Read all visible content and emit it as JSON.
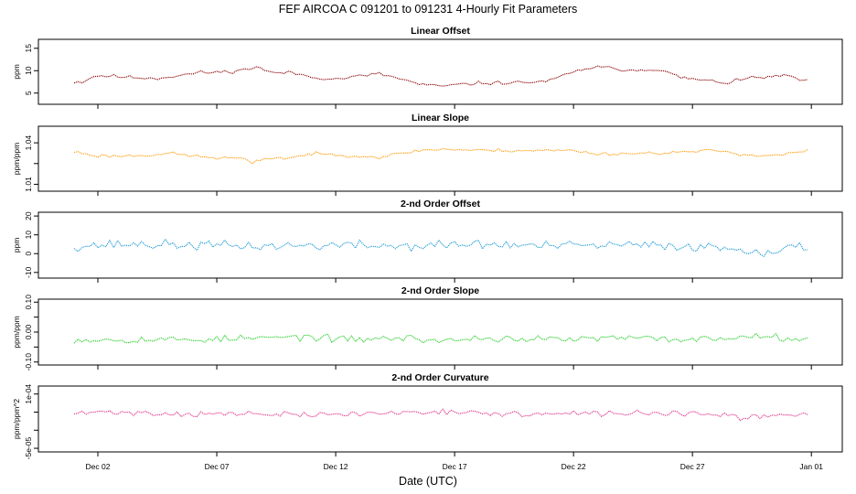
{
  "figure": {
    "title": "FEF   AIRCOA C   091201 to 091231   4-Hourly Fit Parameters",
    "xlabel": "Date (UTC)",
    "x_ticks": [
      {
        "day": 2,
        "label": "Dec 02"
      },
      {
        "day": 7,
        "label": "Dec 07"
      },
      {
        "day": 12,
        "label": "Dec 12"
      },
      {
        "day": 17,
        "label": "Dec 17"
      },
      {
        "day": 22,
        "label": "Dec 22"
      },
      {
        "day": 27,
        "label": "Dec 27"
      },
      {
        "day": 32,
        "label": "Jan 01"
      }
    ],
    "xlim": [
      -0.5,
      33.3
    ]
  },
  "chart_data": [
    {
      "type": "line",
      "title": "Linear Offset",
      "ylabel": "ppm",
      "ylim": [
        2.5,
        17
      ],
      "yticks": [
        5,
        10,
        15
      ],
      "ytick_labels": [
        "5",
        "10",
        "15"
      ],
      "color": "#8b0000",
      "x_start": 1.0,
      "x_step": 0.1667,
      "knots": {
        "x": [
          1.0,
          1.4,
          1.7,
          2.0,
          2.5,
          3.5,
          4.5,
          5.5,
          6.3,
          6.8,
          7.5,
          8.3,
          8.7,
          9.2,
          10.2,
          11.0,
          12.0,
          13.0,
          13.8,
          14.5,
          15.5,
          16.3,
          17.0,
          18.0,
          19.0,
          20.0,
          21.0,
          21.5,
          22.0,
          22.5,
          23.0,
          24.5,
          25.5,
          26.5,
          27.5,
          28.5,
          29.5,
          30.5,
          31.0,
          31.5,
          32.0
        ],
        "y": [
          7.5,
          7.5,
          8.5,
          8.9,
          8.8,
          8.5,
          8.3,
          9.0,
          9.6,
          9.6,
          9.8,
          10.3,
          11.0,
          9.6,
          9.5,
          8.6,
          8.1,
          8.8,
          9.3,
          8.5,
          7.0,
          6.5,
          6.8,
          7.2,
          7.3,
          7.4,
          7.7,
          8.8,
          9.6,
          10.5,
          10.8,
          10.1,
          10.4,
          8.5,
          7.8,
          7.3,
          8.5,
          8.6,
          9.0,
          8.0,
          7.5
        ]
      },
      "noise": 0.2,
      "seed": 11
    },
    {
      "type": "line",
      "title": "Linear Slope",
      "ylabel": "ppm/ppm",
      "ylim": [
        1.005,
        1.052
      ],
      "yticks": [
        1.01,
        1.025,
        1.04
      ],
      "ytick_labels": [
        "1.01",
        "",
        "1.04"
      ],
      "color": "#ff9900",
      "x_start": 1.0,
      "x_step": 0.1667,
      "knots": {
        "x": [
          1.0,
          2.0,
          3.0,
          4.0,
          5.0,
          6.0,
          7.0,
          8.0,
          8.5,
          9.0,
          10.0,
          11.0,
          12.0,
          13.0,
          13.8,
          14.5,
          15.5,
          16.5,
          18.0,
          20.0,
          22.0,
          23.0,
          25.0,
          27.0,
          28.0,
          29.0,
          30.0,
          31.0,
          32.0
        ],
        "y": [
          1.0335,
          1.0305,
          1.0305,
          1.031,
          1.0325,
          1.0305,
          1.029,
          1.029,
          1.025,
          1.029,
          1.029,
          1.032,
          1.0315,
          1.0305,
          1.0295,
          1.0315,
          1.0345,
          1.0355,
          1.0345,
          1.0345,
          1.0345,
          1.032,
          1.0325,
          1.0335,
          1.0345,
          1.032,
          1.0305,
          1.032,
          1.0345
        ]
      },
      "noise": 0.0006,
      "seed": 23
    },
    {
      "type": "line",
      "title": "2-nd Order Offset",
      "ylabel": "ppm",
      "ylim": [
        -13,
        22
      ],
      "yticks": [
        -10,
        0,
        10,
        20
      ],
      "ytick_labels": [
        "-10",
        "0",
        "10",
        "20"
      ],
      "color": "#1e9ad6",
      "x_start": 1.0,
      "x_step": 0.1667,
      "knots": {
        "x": [
          1.0,
          3.0,
          6.0,
          9.0,
          12.0,
          15.0,
          18.0,
          21.0,
          24.0,
          27.0,
          29.5,
          30.0,
          32.0
        ],
        "y": [
          4.0,
          5.0,
          4.5,
          4.0,
          4.5,
          4.0,
          5.0,
          4.0,
          4.5,
          4.0,
          2.0,
          1.0,
          4.0
        ]
      },
      "noise": 1.3,
      "seed": 37
    },
    {
      "type": "line",
      "title": "2-nd Order Slope",
      "ylabel": "ppm/ppm",
      "ylim": [
        -0.11,
        0.11
      ],
      "yticks": [
        -0.1,
        -0.05,
        0.0,
        0.05,
        0.1
      ],
      "ytick_labels": [
        "-0.10",
        "",
        "0.00",
        "",
        "0.10"
      ],
      "color": "#22cc22",
      "x_start": 1.0,
      "x_step": 0.1667,
      "knots": {
        "x": [
          1.0,
          3.0,
          6.0,
          9.0,
          11.0,
          12.0,
          15.0,
          16.5,
          18.0,
          21.0,
          24.0,
          27.0,
          29.5,
          30.0,
          32.0
        ],
        "y": [
          -0.025,
          -0.025,
          -0.025,
          -0.02,
          -0.015,
          -0.025,
          -0.02,
          -0.03,
          -0.02,
          -0.025,
          -0.02,
          -0.025,
          -0.015,
          -0.01,
          -0.025
        ]
      },
      "noise": 0.006,
      "seed": 53
    },
    {
      "type": "line",
      "title": "2-nd Order Curvature",
      "ylabel": "ppm/ppm^2",
      "ylim": [
        -6e-05,
        0.000122
      ],
      "yticks": [
        -5e-05,
        0.0,
        5e-05,
        0.0001
      ],
      "ytick_labels": [
        "-5e-05",
        "",
        "",
        "1e-04"
      ],
      "color": "#e0308a",
      "x_start": 1.0,
      "x_step": 0.1667,
      "knots": {
        "x": [
          1.0,
          2.0,
          3.0,
          5.0,
          8.0,
          11.0,
          14.0,
          16.5,
          18.0,
          21.0,
          23.0,
          26.0,
          29.5,
          30.0,
          32.0
        ],
        "y": [
          4.5e-05,
          5e-05,
          5e-05,
          4.5e-05,
          4.5e-05,
          4.2e-05,
          4.7e-05,
          5.3e-05,
          4.6e-05,
          4.4e-05,
          4.6e-05,
          4.8e-05,
          3.5e-05,
          3.8e-05,
          4.5e-05
        ]
      },
      "noise": 4e-06,
      "seed": 71
    }
  ]
}
